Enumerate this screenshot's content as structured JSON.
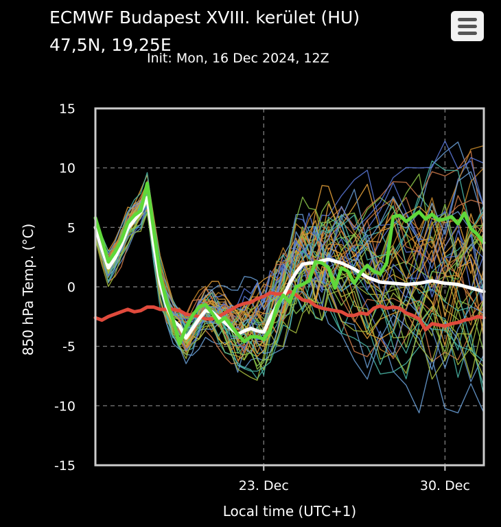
{
  "header": {
    "title_line1": "ECMWF Budapest XVIII. kerület (HU)",
    "title_line2": "47,5N, 19,25E",
    "init": "Init: Mon, 16 Dec 2024, 12Z",
    "menu_icon": "hamburger-menu-icon"
  },
  "colors": {
    "background": "#000000",
    "grid": "#888888",
    "frame": "#cccccc",
    "mean": "#ffffff",
    "control": "#5fd83a",
    "climate": "#e04a3c",
    "ensemble": [
      "#5a78d8",
      "#4ab8a8",
      "#e8a23a",
      "#8cc84a",
      "#c98a2a",
      "#d07a4a",
      "#6aa0d8",
      "#a8c040"
    ]
  },
  "chart_data": {
    "type": "line",
    "title": "ECMWF Budapest XVIII. kerület (HU)",
    "xlabel": "Local time (UTC+1)",
    "ylabel": "850 hPa Temp. (°C)",
    "x_unit": "days since 16 Dec 2024 12Z",
    "xlim": [
      0.0,
      15.0
    ],
    "ylim": [
      -15,
      15
    ],
    "yticks": [
      15,
      10,
      5,
      0,
      -5,
      -10,
      -15
    ],
    "xticks": [
      {
        "value": 6.5,
        "label": "23. Dec"
      },
      {
        "value": 13.5,
        "label": "30. Dec"
      }
    ],
    "grid": true,
    "ensemble_member_count": 50,
    "series": [
      {
        "name": "Ensemble mean",
        "style": "white-thick",
        "x": [
          0.0,
          0.25,
          0.5,
          0.75,
          1.0,
          1.25,
          1.5,
          1.75,
          2.0,
          2.25,
          2.5,
          2.75,
          3.0,
          3.25,
          3.5,
          3.75,
          4.0,
          4.25,
          4.5,
          4.75,
          5.0,
          5.25,
          5.5,
          5.75,
          6.0,
          6.25,
          6.5,
          6.75,
          7.0,
          7.25,
          7.5,
          7.75,
          8.0,
          8.25,
          8.5,
          8.75,
          9.0,
          9.5,
          10.0,
          10.5,
          11.0,
          11.5,
          12.0,
          12.5,
          13.0,
          13.5,
          14.0,
          14.5,
          15.0
        ],
        "values": [
          5.0,
          3.2,
          1.6,
          2.4,
          3.5,
          4.9,
          5.6,
          6.3,
          7.5,
          3.6,
          0.3,
          -1.6,
          -2.8,
          -3.3,
          -4.3,
          -3.5,
          -2.7,
          -2.0,
          -2.1,
          -2.6,
          -3.0,
          -3.5,
          -4.0,
          -3.7,
          -3.5,
          -3.7,
          -3.8,
          -2.6,
          -1.6,
          -0.8,
          0.3,
          1.2,
          1.9,
          2.0,
          2.0,
          2.2,
          2.3,
          2.0,
          1.5,
          0.8,
          0.4,
          0.3,
          0.2,
          0.3,
          0.5,
          0.3,
          0.2,
          -0.1,
          -0.4
        ]
      },
      {
        "name": "Control run",
        "style": "green-thick",
        "x": [
          0.0,
          0.25,
          0.5,
          0.75,
          1.0,
          1.25,
          1.5,
          1.75,
          2.0,
          2.25,
          2.5,
          2.75,
          3.0,
          3.25,
          3.5,
          3.75,
          4.0,
          4.25,
          4.5,
          4.75,
          5.0,
          5.25,
          5.5,
          5.75,
          6.0,
          6.25,
          6.5,
          6.75,
          7.0,
          7.25,
          7.5,
          7.75,
          8.0,
          8.25,
          8.5,
          8.75,
          9.0,
          9.25,
          9.5,
          9.75,
          10.0,
          10.25,
          10.5,
          10.75,
          11.0,
          11.25,
          11.5,
          11.75,
          12.0,
          12.25,
          12.5,
          12.75,
          13.0,
          13.25,
          13.5,
          13.75,
          14.0,
          14.25,
          14.5,
          14.75,
          15.0
        ],
        "values": [
          5.8,
          4.0,
          2.1,
          2.9,
          3.9,
          5.4,
          6.0,
          6.4,
          8.7,
          4.8,
          1.0,
          -1.3,
          -2.8,
          -4.8,
          -3.4,
          -2.4,
          -1.7,
          -1.5,
          -2.2,
          -3.0,
          -2.6,
          -3.3,
          -4.0,
          -4.6,
          -4.2,
          -4.2,
          -4.4,
          -3.6,
          -1.7,
          -0.7,
          -1.3,
          0.0,
          0.2,
          0.5,
          2.1,
          2.0,
          1.6,
          -0.1,
          1.6,
          1.3,
          0.3,
          1.2,
          1.8,
          1.3,
          1.1,
          2.0,
          5.9,
          6.0,
          5.5,
          5.9,
          6.3,
          5.7,
          6.1,
          5.6,
          5.7,
          5.9,
          5.3,
          6.2,
          4.9,
          4.4,
          3.7
        ]
      },
      {
        "name": "Climate reference",
        "style": "red-thick",
        "x": [
          0.0,
          0.25,
          0.5,
          0.75,
          1.0,
          1.25,
          1.5,
          1.75,
          2.0,
          2.25,
          2.5,
          2.75,
          3.0,
          3.25,
          3.5,
          3.75,
          4.0,
          4.25,
          4.5,
          4.75,
          5.0,
          5.25,
          5.5,
          5.75,
          6.0,
          6.25,
          6.5,
          6.75,
          7.0,
          7.25,
          7.5,
          7.75,
          8.0,
          8.25,
          8.5,
          8.75,
          9.0,
          9.25,
          9.5,
          9.75,
          10.0,
          10.25,
          10.5,
          10.75,
          11.0,
          11.25,
          11.5,
          11.75,
          12.0,
          12.25,
          12.5,
          12.75,
          13.0,
          13.25,
          13.5,
          13.75,
          14.0,
          14.25,
          14.5,
          14.75,
          15.0
        ],
        "values": [
          -2.6,
          -2.8,
          -2.5,
          -2.3,
          -2.1,
          -1.9,
          -2.1,
          -2.0,
          -1.7,
          -1.7,
          -1.9,
          -1.9,
          -1.9,
          -2.0,
          -2.3,
          -2.4,
          -2.5,
          -2.7,
          -2.7,
          -2.5,
          -2.2,
          -1.9,
          -1.6,
          -1.4,
          -1.3,
          -1.0,
          -0.8,
          -0.5,
          -0.6,
          -0.6,
          -0.4,
          -0.7,
          -1.1,
          -1.2,
          -1.6,
          -1.8,
          -1.9,
          -2.0,
          -2.1,
          -2.4,
          -2.4,
          -2.2,
          -2.3,
          -1.8,
          -1.6,
          -1.8,
          -1.7,
          -1.8,
          -2.2,
          -2.4,
          -2.7,
          -3.6,
          -3.1,
          -3.2,
          -3.3,
          -3.1,
          -3.0,
          -2.8,
          -2.7,
          -2.5,
          -2.6
        ]
      }
    ]
  }
}
